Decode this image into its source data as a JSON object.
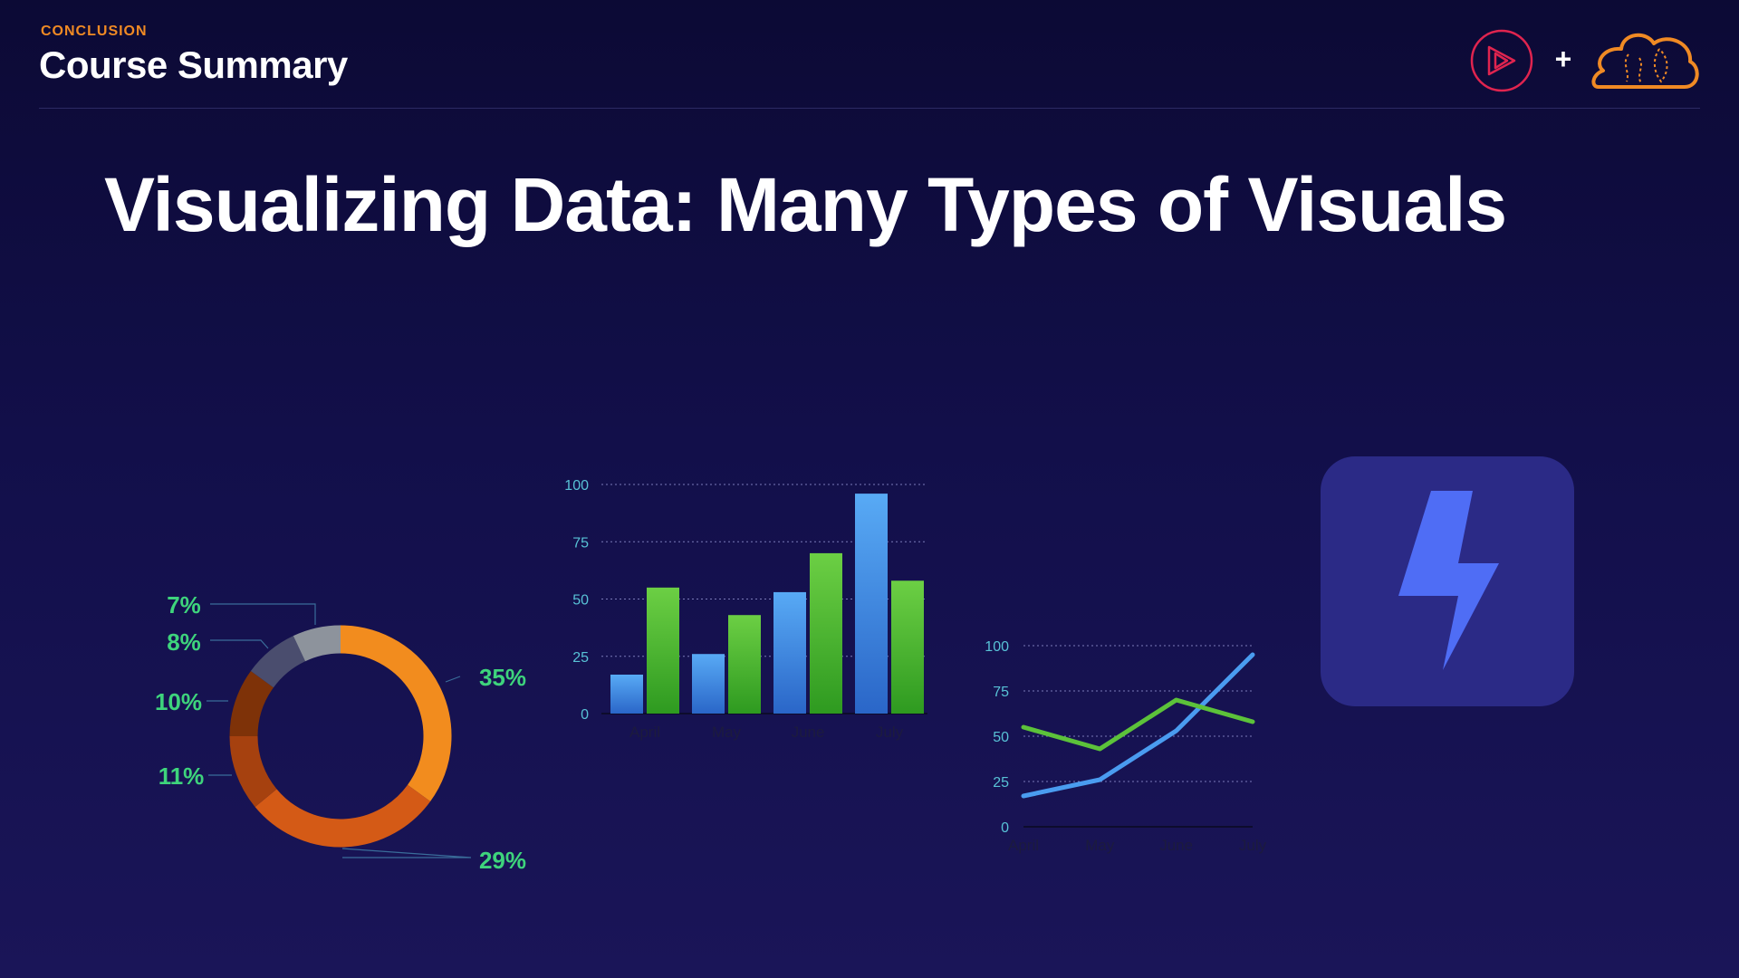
{
  "header": {
    "eyebrow": "CONCLUSION",
    "title": "Course Summary"
  },
  "logos": {
    "left": "play-circle-logo",
    "plus": "+",
    "right": "cloud-logo"
  },
  "main_title": "Visualizing Data: Many Types of Visuals",
  "colors": {
    "background": "#120f4a",
    "accent_orange": "#f08a24",
    "percent_green": "#3ed47c",
    "tick_cyan": "#58c2d6",
    "series_blue": "#4a9cf0",
    "series_green": "#5cc23a",
    "app_tile": "#2b2a86",
    "bolt": "#4f6df5"
  },
  "app_icon": {
    "name": "lightning-bolt-icon"
  },
  "chart_data": [
    {
      "type": "pie",
      "title": "",
      "donut": true,
      "labels": [
        "35%",
        "29%",
        "11%",
        "10%",
        "8%",
        "7%"
      ],
      "values": [
        35,
        29,
        11,
        10,
        8,
        7
      ],
      "colors": [
        "#f28c1e",
        "#d45a16",
        "#a6410f",
        "#7e3208",
        "#4a4d6e",
        "#8d939c"
      ]
    },
    {
      "type": "bar",
      "title": "",
      "categories": [
        "April",
        "May",
        "June",
        "July"
      ],
      "series": [
        {
          "values": [
            17,
            26,
            53,
            96
          ],
          "color": "#4a9cf0"
        },
        {
          "values": [
            55,
            43,
            70,
            58
          ],
          "color": "#5cc23a"
        }
      ],
      "ylim": [
        0,
        100
      ],
      "yticks": [
        0,
        25,
        50,
        75,
        100
      ],
      "grid": true
    },
    {
      "type": "line",
      "title": "",
      "categories": [
        "April",
        "May",
        "June",
        "July"
      ],
      "series": [
        {
          "values": [
            17,
            26,
            53,
            95
          ],
          "color": "#4a9cf0"
        },
        {
          "values": [
            55,
            43,
            70,
            58
          ],
          "color": "#5cc23a"
        }
      ],
      "ylim": [
        0,
        100
      ],
      "yticks": [
        0,
        25,
        50,
        75,
        100
      ],
      "grid": true
    }
  ]
}
